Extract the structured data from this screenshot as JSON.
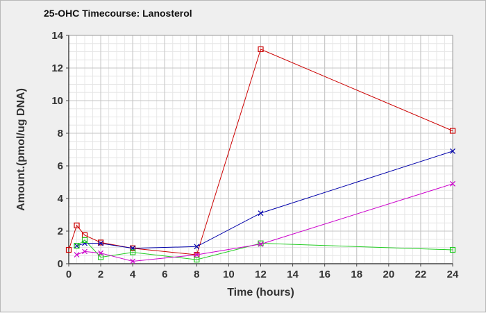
{
  "chart_data": {
    "type": "line",
    "title": "25-OHC Timecourse: Lanosterol",
    "xlabel": "Time (hours)",
    "ylabel": "Amount.(pmol/ug DNA)",
    "xlim": [
      0,
      24
    ],
    "ylim": [
      0,
      14
    ],
    "xticks": [
      0,
      2,
      4,
      6,
      8,
      10,
      12,
      14,
      16,
      18,
      20,
      22,
      24
    ],
    "yticks": [
      0,
      2,
      4,
      6,
      8,
      10,
      12,
      14
    ],
    "grid": true,
    "legend": "none",
    "series": [
      {
        "color": "#cc0000",
        "marker": "square",
        "x": [
          0,
          0.5,
          1,
          2,
          4,
          8,
          12,
          24
        ],
        "y": [
          0.85,
          2.35,
          1.75,
          1.3,
          0.95,
          0.55,
          13.15,
          8.15
        ]
      },
      {
        "color": "#0000aa",
        "marker": "x",
        "x": [
          0.5,
          1,
          2,
          4,
          8,
          12,
          24
        ],
        "y": [
          1.1,
          1.25,
          1.25,
          0.95,
          1.05,
          3.1,
          6.9
        ]
      },
      {
        "color": "#22cc22",
        "marker": "square",
        "x": [
          0.5,
          1,
          2,
          4,
          8,
          12,
          24
        ],
        "y": [
          1.1,
          1.45,
          0.4,
          0.7,
          0.25,
          1.25,
          0.85
        ]
      },
      {
        "color": "#cc00cc",
        "marker": "x",
        "x": [
          0.5,
          1,
          2,
          4,
          8,
          12,
          24
        ],
        "y": [
          0.55,
          0.75,
          0.65,
          0.15,
          0.55,
          1.2,
          4.9
        ]
      }
    ]
  }
}
